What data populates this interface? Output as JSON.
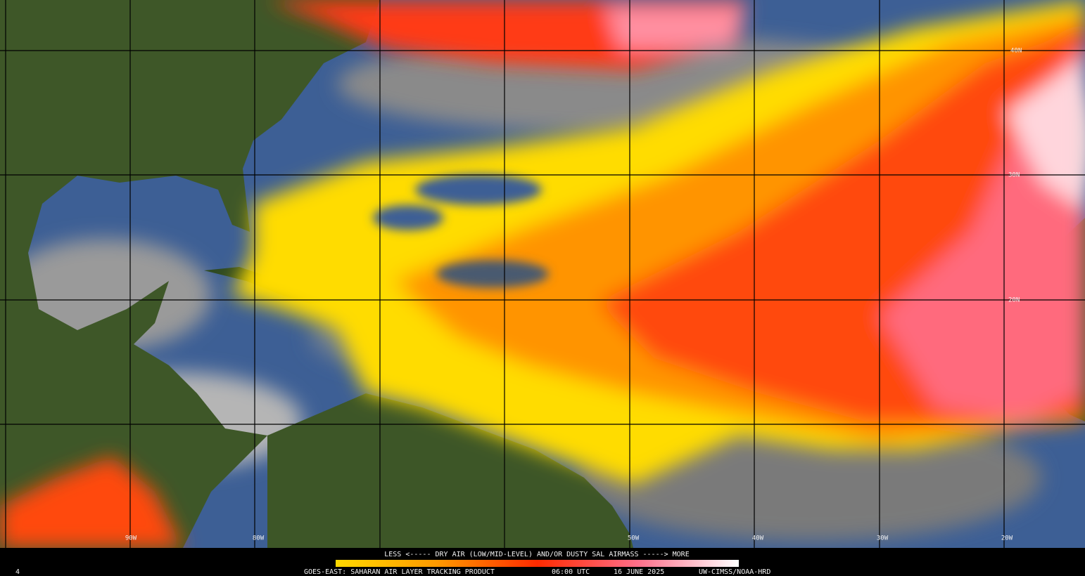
{
  "map": {
    "latitude_labels": [
      "40N",
      "30N",
      "20N"
    ],
    "longitude_labels": [
      "90W",
      "80W",
      "50W",
      "40W",
      "30W",
      "20W"
    ]
  },
  "legend": {
    "caption": "LESS <----- DRY AIR (LOW/MID-LEVEL) AND/OR DUSTY SAL AIRMASS -----> MORE"
  },
  "footer": {
    "frame": "4",
    "product": "GOES-EAST: SAHARAN AIR LAYER TRACKING PRODUCT",
    "time": "06:00 UTC",
    "date": "16 JUNE 2025",
    "credit": "UW-CIMSS/NOAA-HRD"
  }
}
